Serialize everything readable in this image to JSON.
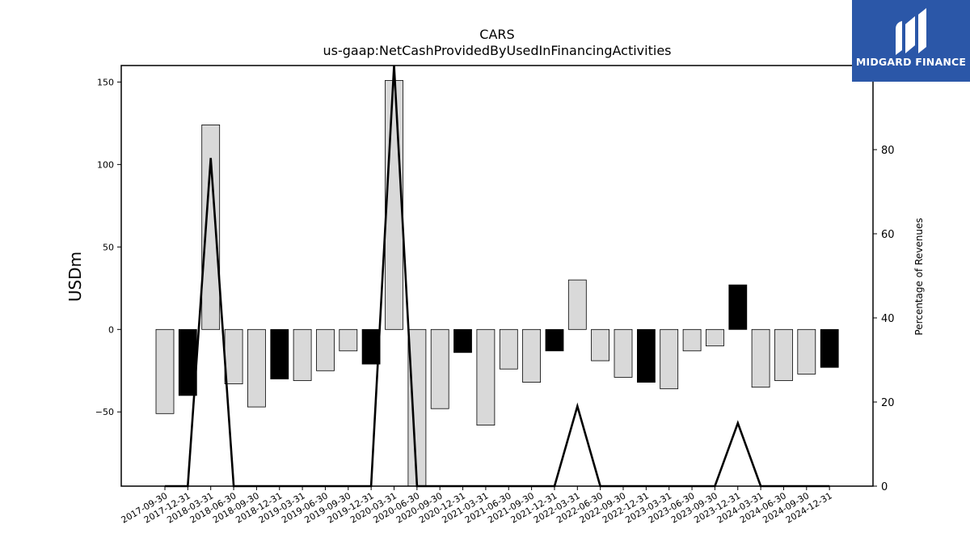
{
  "chart_data": {
    "type": "bar",
    "title": "CARS",
    "subtitle": "us-gaap:NetCashProvidedByUsedInFinancingActivities",
    "ylabel": "USDm",
    "y2label": "Percentage of Revenues",
    "ylim": [
      -95,
      160
    ],
    "y2lim": [
      0,
      100
    ],
    "yticks": [
      -50,
      0,
      50,
      100,
      150
    ],
    "y2ticks": [
      0,
      20,
      40,
      60,
      80
    ],
    "categories": [
      "2017-09-30",
      "2017-12-31",
      "2018-03-31",
      "2018-06-30",
      "2018-09-30",
      "2018-12-31",
      "2019-03-31",
      "2019-06-30",
      "2019-09-30",
      "2019-12-31",
      "2020-03-31",
      "2020-06-30",
      "2020-09-30",
      "2020-12-31",
      "2021-03-31",
      "2021-06-30",
      "2021-09-30",
      "2021-12-31",
      "2022-03-31",
      "2022-06-30",
      "2022-09-30",
      "2022-12-31",
      "2023-03-31",
      "2023-06-30",
      "2023-09-30",
      "2023-12-31",
      "2024-03-31",
      "2024-06-30",
      "2024-09-30",
      "2024-12-31"
    ],
    "series": [
      {
        "type": "bar",
        "values": [
          -51,
          -40,
          124,
          -33,
          -47,
          -30,
          -31,
          -25,
          -13,
          -21,
          151,
          -95,
          -48,
          -14,
          -58,
          -24,
          -32,
          -13,
          30,
          -19,
          -29,
          -32,
          -36,
          -13,
          -10,
          27,
          -35,
          -31,
          -27,
          -23
        ],
        "highlight": [
          false,
          true,
          false,
          false,
          false,
          true,
          false,
          false,
          false,
          true,
          false,
          false,
          false,
          true,
          false,
          false,
          false,
          true,
          false,
          false,
          false,
          true,
          false,
          false,
          false,
          true,
          false,
          false,
          false,
          true
        ]
      },
      {
        "type": "line",
        "axis": "right",
        "values": [
          0,
          0,
          78,
          0,
          0,
          0,
          0,
          0,
          0,
          0,
          100,
          0,
          0,
          0,
          0,
          0,
          0,
          0,
          19,
          0,
          0,
          0,
          0,
          0,
          0,
          15,
          0,
          0,
          0,
          0
        ]
      }
    ],
    "colors": {
      "bar": "#d9d9d9",
      "bar_highlight": "#000000",
      "line": "#000000"
    }
  },
  "logo": {
    "text": "MIDGARD FINANCE",
    "background": "#2b57a8"
  }
}
